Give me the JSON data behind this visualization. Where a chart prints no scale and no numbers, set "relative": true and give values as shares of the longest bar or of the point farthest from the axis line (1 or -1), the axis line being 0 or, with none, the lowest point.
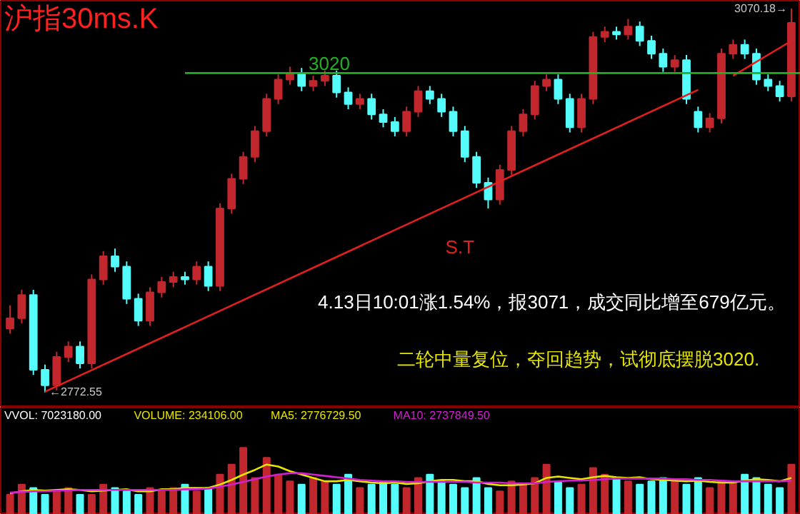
{
  "chart_data": [
    {
      "type": "candlestick",
      "title": "沪指30ms.K",
      "categories": [
        null,
        null,
        null,
        null,
        null,
        null,
        null,
        null,
        null,
        null,
        null,
        null,
        null,
        null,
        null,
        null,
        null,
        null,
        null,
        null,
        null,
        null,
        null,
        null,
        null,
        null,
        null,
        null,
        null,
        null,
        null,
        null,
        null,
        null,
        null,
        null,
        null,
        null,
        null,
        null,
        null,
        null,
        null,
        null,
        null,
        null,
        null,
        null,
        null,
        null,
        null,
        null,
        null,
        null,
        null,
        null,
        null,
        null,
        null,
        null,
        null,
        null,
        null,
        null,
        null,
        null,
        null,
        null
      ],
      "ohlc": [
        [
          2822,
          2840,
          2818,
          2830
        ],
        [
          2830,
          2852,
          2826,
          2848
        ],
        [
          2848,
          2852,
          2786,
          2790
        ],
        [
          2790,
          2794,
          2772.55,
          2778
        ],
        [
          2778,
          2804,
          2774,
          2800
        ],
        [
          2800,
          2812,
          2796,
          2808
        ],
        [
          2808,
          2812,
          2791,
          2795
        ],
        [
          2795,
          2864,
          2791,
          2860
        ],
        [
          2860,
          2882,
          2856,
          2878
        ],
        [
          2878,
          2884,
          2866,
          2870
        ],
        [
          2870,
          2874,
          2841,
          2845
        ],
        [
          2845,
          2849,
          2824,
          2828
        ],
        [
          2828,
          2854,
          2824,
          2850
        ],
        [
          2850,
          2862,
          2846,
          2858
        ],
        [
          2858,
          2866,
          2854,
          2862
        ],
        [
          2862,
          2866,
          2856,
          2860
        ],
        [
          2860,
          2874,
          2856,
          2870
        ],
        [
          2870,
          2874,
          2851,
          2855
        ],
        [
          2855,
          2919,
          2851,
          2915
        ],
        [
          2915,
          2942,
          2911,
          2938
        ],
        [
          2938,
          2959,
          2934,
          2955
        ],
        [
          2955,
          2979,
          2951,
          2975
        ],
        [
          2975,
          3004,
          2971,
          3000
        ],
        [
          3000,
          3019,
          2996,
          3015
        ],
        [
          3015,
          3025,
          3011,
          3020
        ],
        [
          3020,
          3024,
          3006,
          3010
        ],
        [
          3010,
          3018,
          3006,
          3014
        ],
        [
          3014,
          3022,
          3010,
          3018
        ],
        [
          3018,
          3022,
          3001,
          3005
        ],
        [
          3005,
          3009,
          2992,
          2996
        ],
        [
          2996,
          3004,
          2992,
          3000
        ],
        [
          3000,
          3004,
          2984,
          2988
        ],
        [
          2988,
          2992,
          2978,
          2982
        ],
        [
          2982,
          2986,
          2971,
          2975
        ],
        [
          2975,
          2994,
          2971,
          2990
        ],
        [
          2990,
          3010,
          2986,
          3006
        ],
        [
          3006,
          3010,
          2996,
          3000
        ],
        [
          3000,
          3004,
          2986,
          2990
        ],
        [
          2990,
          2994,
          2971,
          2975
        ],
        [
          2975,
          2979,
          2951,
          2955
        ],
        [
          2955,
          2959,
          2931,
          2935
        ],
        [
          2935,
          2939,
          2915,
          2922
        ],
        [
          2922,
          2949,
          2918,
          2945
        ],
        [
          2945,
          2979,
          2941,
          2975
        ],
        [
          2975,
          2992,
          2971,
          2988
        ],
        [
          2988,
          3014,
          2984,
          3010
        ],
        [
          3010,
          3019,
          3006,
          3015
        ],
        [
          3015,
          3019,
          2996,
          3000
        ],
        [
          3000,
          3004,
          2974,
          2978
        ],
        [
          2978,
          3004,
          2974,
          3000
        ],
        [
          3000,
          3052,
          2996,
          3048
        ],
        [
          3048,
          3056,
          3044,
          3052
        ],
        [
          3052,
          3056,
          3046,
          3050
        ],
        [
          3050,
          3062,
          3046,
          3056
        ],
        [
          3056,
          3060,
          3041,
          3045
        ],
        [
          3045,
          3049,
          3031,
          3035
        ],
        [
          3035,
          3039,
          3021,
          3025
        ],
        [
          3025,
          3034,
          3021,
          3030
        ],
        [
          3030,
          3034,
          2996,
          3000
        ],
        [
          2990,
          2994,
          2974,
          2978
        ],
        [
          2978,
          2989,
          2974,
          2985
        ],
        [
          2985,
          3039,
          2981,
          3035
        ],
        [
          3035,
          3046,
          3031,
          3042
        ],
        [
          3042,
          3046,
          3031,
          3035
        ],
        [
          3035,
          3039,
          3011,
          3015
        ],
        [
          3015,
          3019,
          3006,
          3010
        ],
        [
          3010,
          3014,
          2998,
          3002
        ],
        [
          3002,
          3070.18,
          2998,
          3059
        ]
      ],
      "colors": [
        "#c1272d",
        "#c1272d",
        "#54fcfc",
        "#54fcfc",
        "#c1272d",
        "#c1272d",
        "#54fcfc",
        "#c1272d",
        "#c1272d",
        "#54fcfc",
        "#54fcfc",
        "#54fcfc",
        "#c1272d",
        "#c1272d",
        "#c1272d",
        "#54fcfc",
        "#c1272d",
        "#54fcfc",
        "#c1272d",
        "#c1272d",
        "#c1272d",
        "#c1272d",
        "#c1272d",
        "#c1272d",
        "#c1272d",
        "#54fcfc",
        "#c1272d",
        "#c1272d",
        "#54fcfc",
        "#54fcfc",
        "#c1272d",
        "#54fcfc",
        "#54fcfc",
        "#54fcfc",
        "#c1272d",
        "#c1272d",
        "#54fcfc",
        "#54fcfc",
        "#54fcfc",
        "#54fcfc",
        "#54fcfc",
        "#54fcfc",
        "#c1272d",
        "#c1272d",
        "#c1272d",
        "#c1272d",
        "#c1272d",
        "#54fcfc",
        "#54fcfc",
        "#c1272d",
        "#c1272d",
        "#c1272d",
        "#54fcfc",
        "#c1272d",
        "#54fcfc",
        "#54fcfc",
        "#54fcfc",
        "#c1272d",
        "#54fcfc",
        "#54fcfc",
        "#c1272d",
        "#c1272d",
        "#c1272d",
        "#54fcfc",
        "#54fcfc",
        "#54fcfc",
        "#54fcfc",
        "#c1272d"
      ],
      "series": [
        {
          "type": "line",
          "name": "S.T",
          "color": "#e02020",
          "values": [
            null,
            null,
            null,
            2773,
            null,
            null,
            null,
            null,
            null,
            null,
            null,
            null,
            null,
            null,
            null,
            null,
            null,
            null,
            null,
            null,
            null,
            null,
            null,
            null,
            null,
            null,
            null,
            null,
            null,
            null,
            null,
            null,
            null,
            null,
            null,
            null,
            null,
            null,
            null,
            null,
            null,
            null,
            null,
            null,
            null,
            null,
            null,
            null,
            null,
            null,
            null,
            null,
            null,
            null,
            null,
            null,
            null,
            null,
            null,
            3007,
            null,
            null,
            null,
            null,
            null,
            null,
            null,
            null
          ]
        },
        {
          "type": "line",
          "color": "#e02020",
          "values": [
            null,
            null,
            null,
            null,
            null,
            null,
            null,
            null,
            null,
            null,
            null,
            null,
            null,
            null,
            null,
            null,
            null,
            null,
            null,
            null,
            null,
            null,
            null,
            null,
            null,
            null,
            null,
            null,
            null,
            null,
            null,
            null,
            null,
            null,
            null,
            null,
            null,
            null,
            null,
            null,
            null,
            null,
            null,
            null,
            null,
            null,
            null,
            null,
            null,
            null,
            null,
            null,
            null,
            null,
            null,
            null,
            null,
            null,
            null,
            null,
            null,
            null,
            3018,
            null,
            null,
            null,
            null,
            3045
          ]
        }
      ],
      "ref_lines": [
        {
          "axis": "y",
          "value": 3020,
          "label": "3020",
          "color": "#22b022"
        }
      ],
      "annotations": [
        "←2772.55",
        "3070.18→",
        "4.13日10:01涨1.54%，报3071，成交同比增至679亿元。",
        "二轮中量复位，夺回趋势，试彻底摆脱3020."
      ],
      "grid": false
    },
    {
      "type": "bar",
      "relative": true,
      "categories": [
        null,
        null,
        null,
        null,
        null,
        null,
        null,
        null,
        null,
        null,
        null,
        null,
        null,
        null,
        null,
        null,
        null,
        null,
        null,
        null,
        null,
        null,
        null,
        null,
        null,
        null,
        null,
        null,
        null,
        null,
        null,
        null,
        null,
        null,
        null,
        null,
        null,
        null,
        null,
        null,
        null,
        null,
        null,
        null,
        null,
        null,
        null,
        null,
        null,
        null,
        null,
        null,
        null,
        null,
        null,
        null,
        null,
        null,
        null,
        null,
        null,
        null,
        null,
        null,
        null,
        null,
        null,
        null
      ],
      "series": [
        {
          "type": "bar",
          "colors": [
            "#c1272d",
            "#c1272d",
            "#54fcfc",
            "#54fcfc",
            "#c1272d",
            "#c1272d",
            "#54fcfc",
            "#c1272d",
            "#c1272d",
            "#54fcfc",
            "#54fcfc",
            "#54fcfc",
            "#c1272d",
            "#c1272d",
            "#c1272d",
            "#54fcfc",
            "#c1272d",
            "#54fcfc",
            "#c1272d",
            "#c1272d",
            "#c1272d",
            "#c1272d",
            "#c1272d",
            "#c1272d",
            "#c1272d",
            "#54fcfc",
            "#c1272d",
            "#c1272d",
            "#54fcfc",
            "#54fcfc",
            "#c1272d",
            "#54fcfc",
            "#54fcfc",
            "#54fcfc",
            "#c1272d",
            "#c1272d",
            "#54fcfc",
            "#54fcfc",
            "#54fcfc",
            "#54fcfc",
            "#54fcfc",
            "#54fcfc",
            "#c1272d",
            "#c1272d",
            "#c1272d",
            "#c1272d",
            "#c1272d",
            "#54fcfc",
            "#54fcfc",
            "#c1272d",
            "#c1272d",
            "#c1272d",
            "#54fcfc",
            "#c1272d",
            "#54fcfc",
            "#54fcfc",
            "#54fcfc",
            "#c1272d",
            "#54fcfc",
            "#54fcfc",
            "#c1272d",
            "#c1272d",
            "#c1272d",
            "#54fcfc",
            "#54fcfc",
            "#54fcfc",
            "#54fcfc",
            "#c1272d"
          ],
          "values": [
            0.3,
            0.45,
            0.4,
            0.3,
            0.35,
            0.4,
            0.3,
            0.3,
            0.45,
            0.4,
            0.35,
            0.3,
            0.4,
            0.35,
            0.4,
            0.45,
            0.35,
            0.4,
            0.6,
            0.75,
            1.0,
            0.55,
            0.85,
            0.6,
            0.5,
            0.45,
            0.55,
            0.5,
            0.45,
            0.6,
            0.4,
            0.45,
            0.5,
            0.45,
            0.4,
            0.55,
            0.6,
            0.5,
            0.45,
            0.4,
            0.55,
            0.4,
            0.35,
            0.5,
            0.45,
            0.55,
            0.75,
            0.5,
            0.4,
            0.45,
            0.7,
            0.6,
            0.55,
            0.5,
            0.45,
            0.5,
            0.55,
            0.5,
            0.45,
            0.55,
            0.4,
            0.5,
            0.5,
            0.6,
            0.55,
            0.45,
            0.4,
            0.75
          ]
        },
        {
          "type": "line",
          "color": "#e6e600",
          "values": [
            0.32,
            0.35,
            0.37,
            0.36,
            0.37,
            0.38,
            0.37,
            0.35,
            0.36,
            0.37,
            0.38,
            0.35,
            0.35,
            0.38,
            0.38,
            0.4,
            0.4,
            0.4,
            0.45,
            0.52,
            0.6,
            0.67,
            0.75,
            0.72,
            0.65,
            0.6,
            0.55,
            0.5,
            0.5,
            0.52,
            0.5,
            0.48,
            0.47,
            0.48,
            0.46,
            0.47,
            0.5,
            0.52,
            0.52,
            0.5,
            0.5,
            0.46,
            0.44,
            0.44,
            0.45,
            0.47,
            0.55,
            0.57,
            0.55,
            0.53,
            0.56,
            0.58,
            0.56,
            0.55,
            0.56,
            0.53,
            0.52,
            0.51,
            0.5,
            0.51,
            0.49,
            0.48,
            0.48,
            0.51,
            0.53,
            0.52,
            0.5,
            0.55
          ]
        },
        {
          "type": "line",
          "color": "#d020d0",
          "values": [
            0.33,
            0.34,
            0.35,
            0.35,
            0.36,
            0.36,
            0.37,
            0.37,
            0.37,
            0.37,
            0.37,
            0.37,
            0.37,
            0.37,
            0.37,
            0.38,
            0.38,
            0.39,
            0.42,
            0.45,
            0.49,
            0.53,
            0.57,
            0.6,
            0.62,
            0.62,
            0.6,
            0.58,
            0.56,
            0.54,
            0.52,
            0.51,
            0.5,
            0.5,
            0.49,
            0.49,
            0.49,
            0.49,
            0.49,
            0.49,
            0.48,
            0.48,
            0.48,
            0.47,
            0.47,
            0.47,
            0.49,
            0.5,
            0.51,
            0.51,
            0.52,
            0.53,
            0.54,
            0.54,
            0.54,
            0.54,
            0.54,
            0.53,
            0.53,
            0.52,
            0.52,
            0.51,
            0.5,
            0.5,
            0.5,
            0.5,
            0.5,
            0.51
          ]
        }
      ],
      "annotations": [
        "VVOL: 7023180.00",
        "VOLUME: 234106.00",
        "MA5: 2776729.50",
        "MA10: 2737849.50"
      ],
      "grid": false
    }
  ]
}
